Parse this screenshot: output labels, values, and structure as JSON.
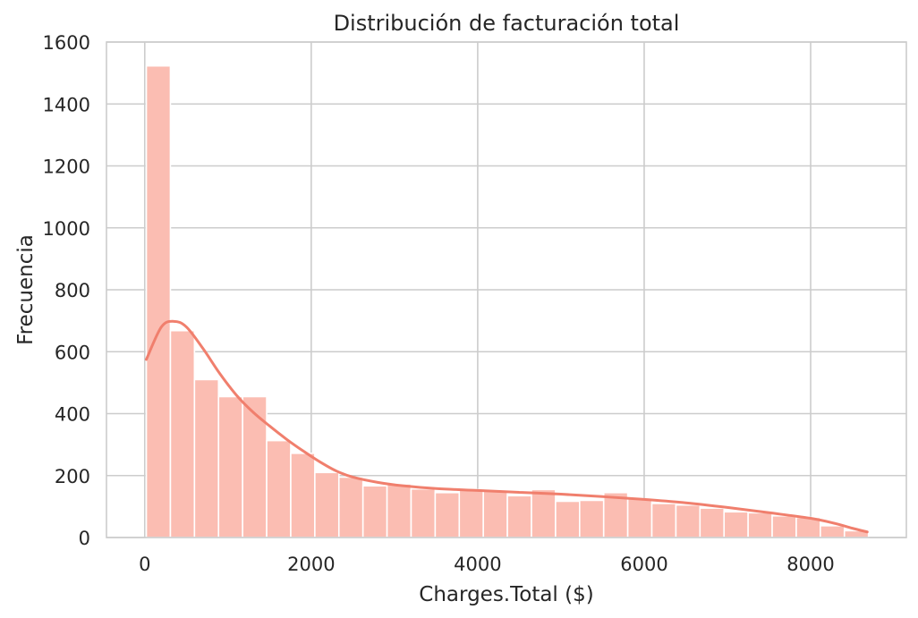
{
  "chart_data": {
    "type": "bar",
    "title": "Distribución de facturación total",
    "xlabel": "Charges.Total ($)",
    "ylabel": "Frecuencia",
    "xlim": [
      -460,
      9150
    ],
    "ylim": [
      0,
      1600
    ],
    "xticks": [
      0,
      2000,
      4000,
      6000,
      8000
    ],
    "yticks": [
      0,
      200,
      400,
      600,
      800,
      1000,
      1200,
      1400,
      1600
    ],
    "grid": true,
    "bin_start": 18.8,
    "bin_width": 289.2,
    "counts": [
      1523,
      668,
      510,
      455,
      455,
      313,
      272,
      210,
      195,
      167,
      173,
      157,
      145,
      155,
      150,
      135,
      155,
      117,
      120,
      145,
      125,
      110,
      105,
      95,
      83,
      80,
      70,
      65,
      38,
      22
    ],
    "kde": {
      "x": [
        18.8,
        200,
        350,
        500,
        700,
        900,
        1100,
        1300,
        1500,
        1700,
        1900,
        2100,
        2300,
        2500,
        2800,
        3100,
        3500,
        4000,
        4500,
        5000,
        5500,
        6000,
        6500,
        7000,
        7500,
        8000,
        8300,
        8500,
        8680
      ],
      "y": [
        575,
        680,
        698,
        680,
        610,
        530,
        460,
        405,
        360,
        318,
        280,
        245,
        215,
        195,
        178,
        167,
        158,
        152,
        146,
        140,
        132,
        123,
        112,
        97,
        80,
        62,
        45,
        30,
        18
      ]
    },
    "colors": {
      "bars": "#fbbdb2",
      "kde_line": "#f07f6d",
      "grid": "#cccccc",
      "spine": "#cccccc",
      "text": "#262626"
    }
  }
}
